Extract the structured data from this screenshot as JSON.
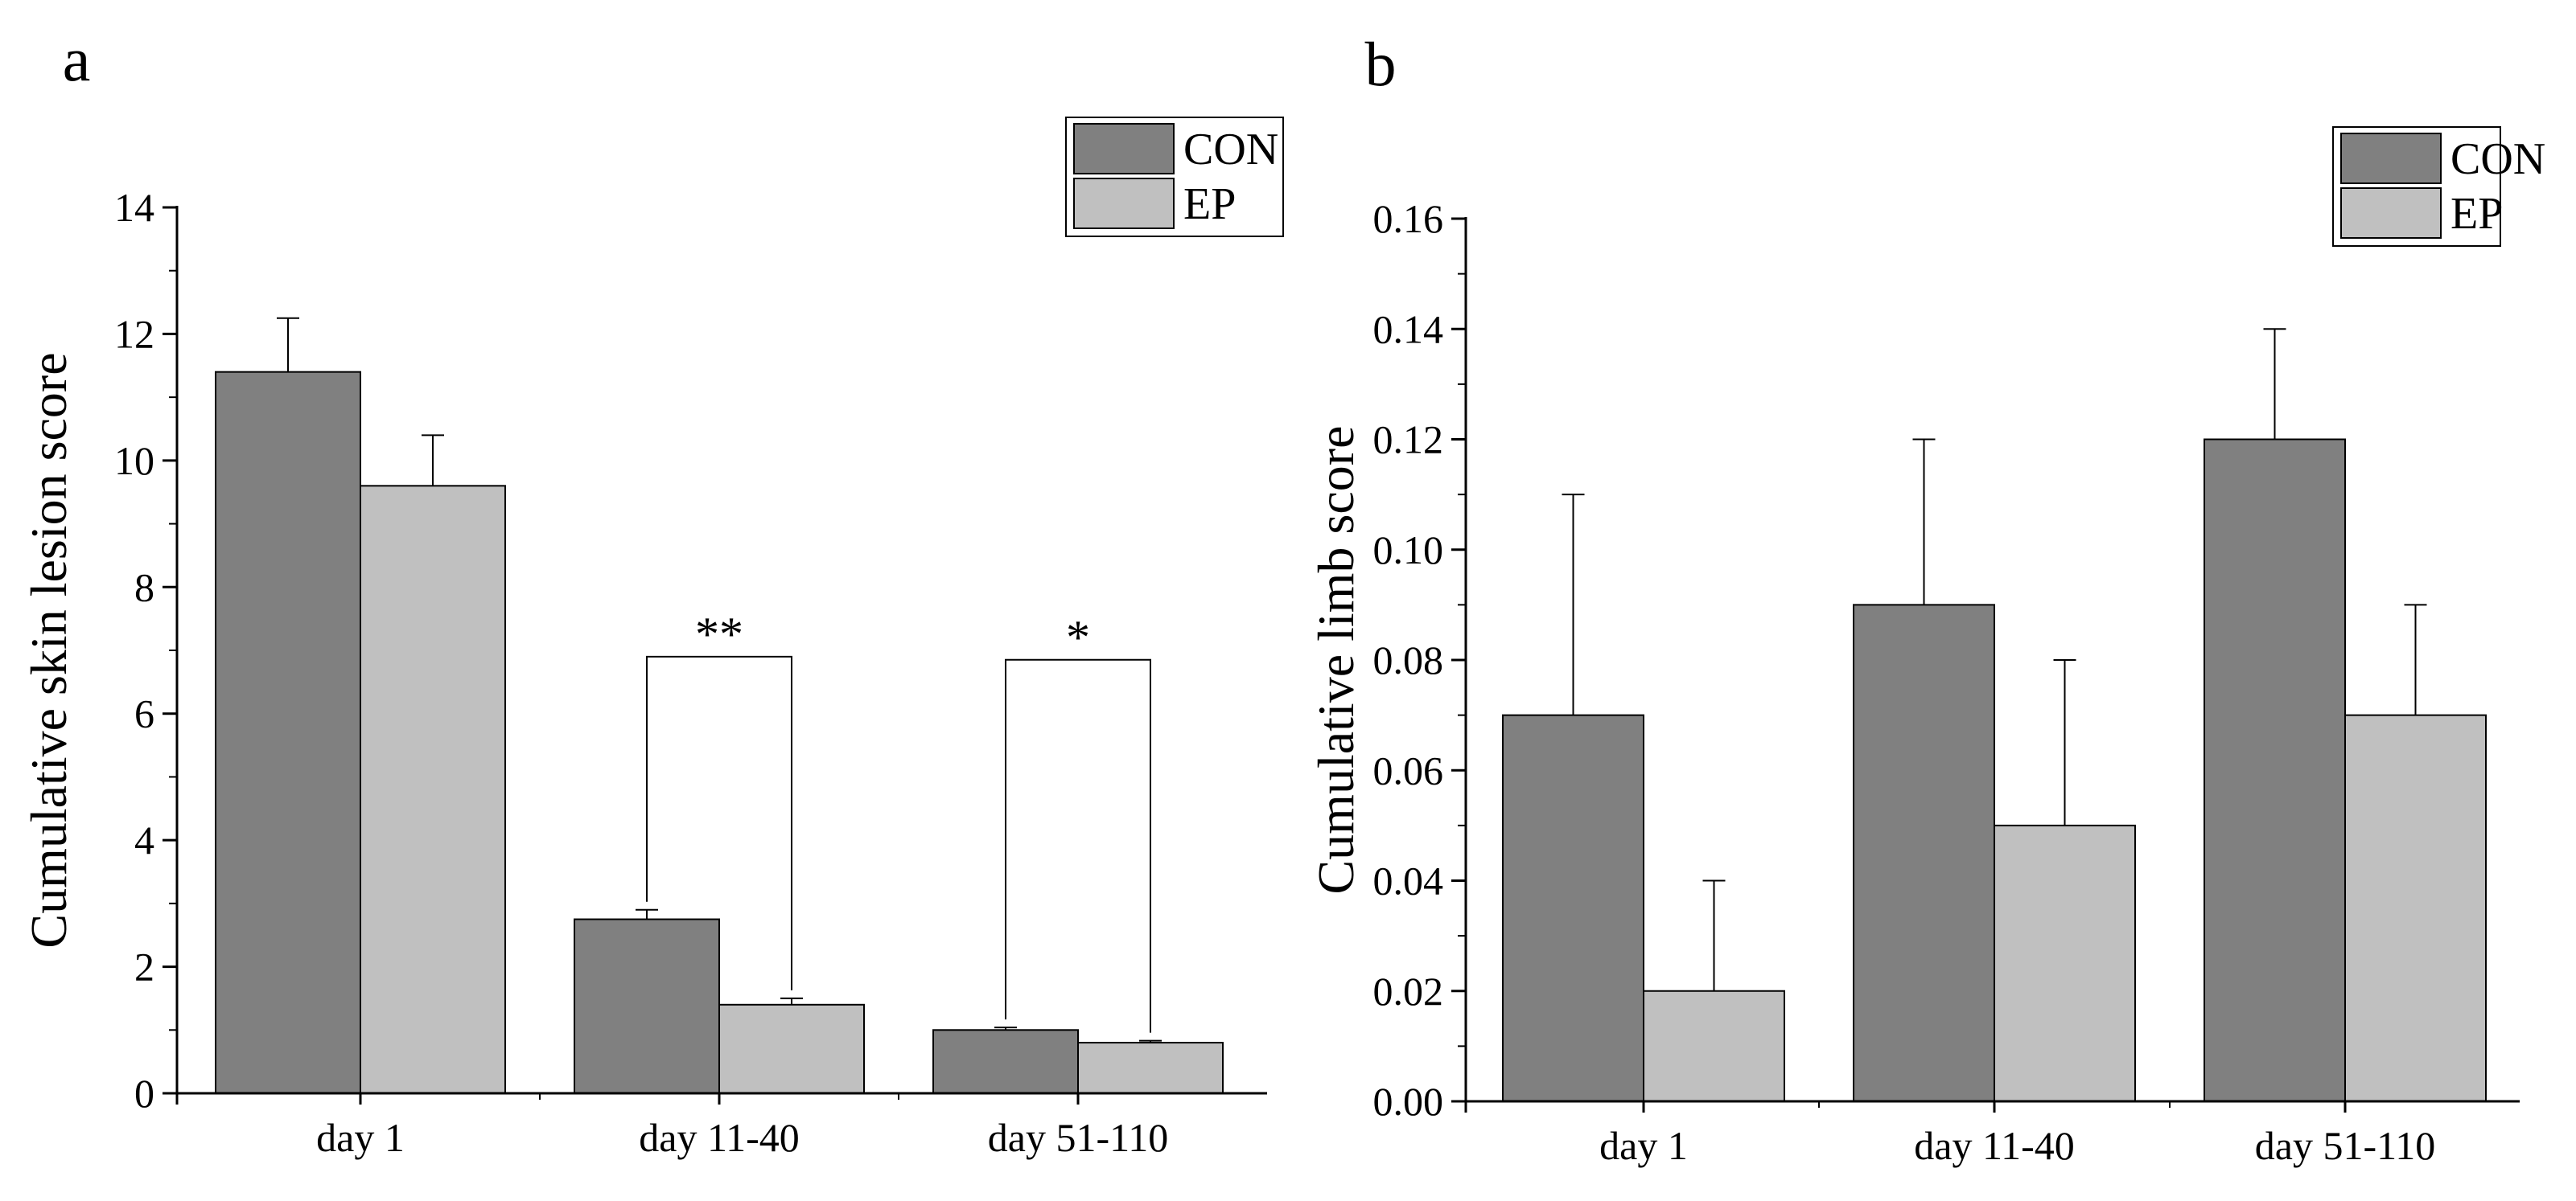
{
  "chart_data": [
    {
      "type": "bar",
      "panel_label": "a",
      "title": "",
      "xlabel": "",
      "ylabel": "Cumulative skin lesion score",
      "categories": [
        "day 1",
        "day 11-40",
        "day 51-110"
      ],
      "ylim": [
        0,
        14
      ],
      "yticks": [
        "0",
        "2",
        "4",
        "6",
        "8",
        "10",
        "12",
        "14"
      ],
      "series": [
        {
          "name": "CON",
          "values": [
            11.4,
            2.75,
            1.0
          ],
          "errors": [
            0.85,
            0.15,
            0.04
          ],
          "color": "#808080"
        },
        {
          "name": "EP",
          "values": [
            9.6,
            1.4,
            0.8
          ],
          "errors": [
            0.8,
            0.1,
            0.03
          ],
          "color": "#c0c0c0"
        }
      ],
      "significance": [
        {
          "category_index": 1,
          "label": "**",
          "y": 6.9
        },
        {
          "category_index": 2,
          "label": "*",
          "y": 6.85
        }
      ],
      "legend_position": "top-right",
      "grid": false
    },
    {
      "type": "bar",
      "panel_label": "b",
      "title": "",
      "xlabel": "",
      "ylabel": "Cumulative limb score",
      "categories": [
        "day 1",
        "day 11-40",
        "day 51-110"
      ],
      "ylim": [
        0,
        0.16
      ],
      "yticks": [
        "0.00",
        "0.02",
        "0.04",
        "0.06",
        "0.08",
        "0.10",
        "0.12",
        "0.14",
        "0.16"
      ],
      "series": [
        {
          "name": "CON",
          "values": [
            0.07,
            0.09,
            0.12
          ],
          "errors": [
            0.04,
            0.03,
            0.02
          ],
          "color": "#808080"
        },
        {
          "name": "EP",
          "values": [
            0.02,
            0.05,
            0.07
          ],
          "errors": [
            0.02,
            0.03,
            0.02
          ],
          "color": "#c0c0c0"
        }
      ],
      "significance": [],
      "legend_position": "top-right",
      "grid": false
    }
  ]
}
